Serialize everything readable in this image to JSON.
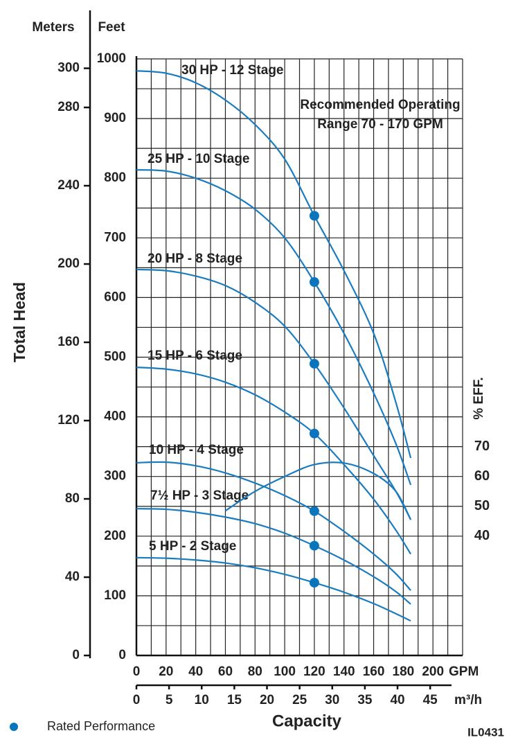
{
  "chart_data": {
    "type": "line",
    "y_label_left": "Meters",
    "y_label_feet": "Feet",
    "y_title": "Total Head",
    "x_title": "Capacity",
    "x_unit": "GPM",
    "x2_unit": "m³/h",
    "y3_title": "% EFF.",
    "annotation": [
      "Recommended Operating",
      "Range 70 - 170 GPM"
    ],
    "figure_id": "IL0431",
    "grid": true,
    "x": [
      0,
      20,
      40,
      60,
      80,
      100,
      120,
      140,
      160,
      175,
      185
    ],
    "xlim": [
      0,
      220
    ],
    "xticks": [
      0,
      20,
      40,
      60,
      80,
      100,
      120,
      140,
      160,
      180,
      200
    ],
    "x2lim": [
      0,
      49.97
    ],
    "x2ticks": [
      0,
      5,
      10,
      15,
      20,
      25,
      30,
      35,
      40,
      45
    ],
    "ylim": [
      0,
      1000
    ],
    "yticks": [
      0,
      100,
      200,
      300,
      400,
      500,
      600,
      700,
      800,
      900,
      1000
    ],
    "y2lim": [
      0,
      304.8
    ],
    "y2ticks": [
      0,
      40,
      80,
      120,
      160,
      200,
      240,
      280,
      300
    ],
    "y3lim": [
      0,
      200
    ],
    "y3ticks": [
      40,
      50,
      60,
      70
    ],
    "series": [
      {
        "name": "30 HP - 12 Stage",
        "color": "#1a7bbf",
        "values": [
          980,
          976,
          960,
          931,
          890,
          832,
          737,
          645,
          540,
          424,
          331
        ]
      },
      {
        "name": "25 HP - 10 Stage",
        "color": "#1a7bbf",
        "values": [
          814,
          812,
          800,
          779,
          748,
          700,
          626,
          540,
          440,
          355,
          286
        ]
      },
      {
        "name": "20 HP - 8 Stage",
        "color": "#1a7bbf",
        "values": [
          647,
          645,
          636,
          620,
          592,
          552,
          489,
          415,
          335,
          275,
          228
        ]
      },
      {
        "name": "15 HP - 6 Stage",
        "color": "#1a7bbf",
        "values": [
          483,
          480,
          472,
          458,
          437,
          408,
          372,
          320,
          262,
          210,
          170
        ]
      },
      {
        "name": "10 HP - 4 Stage",
        "color": "#1a7bbf",
        "values": [
          323,
          324,
          318,
          306,
          289,
          268,
          242,
          208,
          170,
          137,
          109
        ]
      },
      {
        "name": "7½ HP - 3 Stage",
        "color": "#1a7bbf",
        "values": [
          246,
          245,
          240,
          232,
          221,
          205,
          184,
          160,
          132,
          107,
          86
        ]
      },
      {
        "name": "5 HP - 2 Stage",
        "color": "#1a7bbf",
        "values": [
          164,
          163,
          160,
          155,
          147,
          136,
          122,
          106,
          87,
          70,
          58
        ]
      },
      {
        "color": "#1a7bbf",
        "axis": "y3",
        "values": [
          null,
          null,
          null,
          48.5,
          55,
          60,
          64,
          64.5,
          61,
          55,
          45.5
        ]
      }
    ],
    "rated_performance": {
      "name": "Rated Performance",
      "color": "#0a74bd",
      "x": [
        120,
        120,
        120,
        120,
        120,
        120,
        120
      ],
      "values": [
        737,
        626,
        489,
        372,
        242,
        184,
        122
      ]
    }
  }
}
